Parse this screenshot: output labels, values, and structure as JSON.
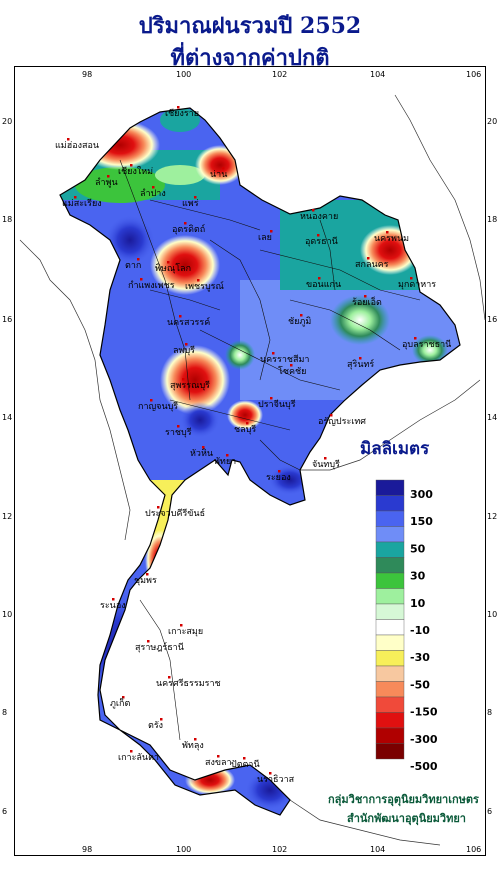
{
  "title_line1": "ปริมาณฝนรวมปี 2552",
  "title_line2": "ที่ต่างจากค่าปกติ",
  "axes": {
    "x_ticks": [
      "98",
      "100",
      "102",
      "104",
      "106"
    ],
    "y_ticks": [
      "20",
      "18",
      "16",
      "14",
      "12",
      "10",
      "8",
      "6"
    ]
  },
  "legend": {
    "title": "มิลลิเมตร",
    "colors": [
      "#1a1a9a",
      "#2a3ad0",
      "#4a64f0",
      "#6f8df7",
      "#1aa5a0",
      "#2f8a5a",
      "#3cc43c",
      "#9ef09e",
      "#d6f8d6",
      "#ffffff",
      "#ffffc8",
      "#f7ef5a",
      "#f7c8a0",
      "#f78a5a",
      "#f04a3a",
      "#e01010",
      "#b00000",
      "#7a0000"
    ],
    "labels": [
      "300",
      "150",
      "50",
      "30",
      "10",
      "-10",
      "-30",
      "-50",
      "-150",
      "-300",
      "-500"
    ]
  },
  "cities": [
    {
      "name": "เชียงราย"
    },
    {
      "name": "แม่ฮ่องสอน"
    },
    {
      "name": "เชียงใหม่"
    },
    {
      "name": "น่าน"
    },
    {
      "name": "ลำพูน"
    },
    {
      "name": "ลำปาง"
    },
    {
      "name": "แพร่"
    },
    {
      "name": "แม่สะเรียง"
    },
    {
      "name": "อุตรดิตถ์"
    },
    {
      "name": "ตาก"
    },
    {
      "name": "หนองคาย"
    },
    {
      "name": "นครพนม"
    },
    {
      "name": "อุดรธานี"
    },
    {
      "name": "เลย"
    },
    {
      "name": "สกลนคร"
    },
    {
      "name": "พิษณุโลก"
    },
    {
      "name": "มุกดาหาร"
    },
    {
      "name": "ขอนแก่น"
    },
    {
      "name": "กำแพงเพชร"
    },
    {
      "name": "เพชรบูรณ์"
    },
    {
      "name": "ร้อยเอ็ด"
    },
    {
      "name": "นครสวรรค์"
    },
    {
      "name": "ชัยภูมิ"
    },
    {
      "name": "อุบลราชธานี"
    },
    {
      "name": "ลพบุรี"
    },
    {
      "name": "สุรินทร์"
    },
    {
      "name": "นครราชสีมา"
    },
    {
      "name": "สุพรรณบุรี"
    },
    {
      "name": "โชคชัย"
    },
    {
      "name": "กาญจนบุรี"
    },
    {
      "name": "ปราจีนบุรี"
    },
    {
      "name": "อรัญประเทศ"
    },
    {
      "name": "ราชบุรี"
    },
    {
      "name": "ชลบุรี"
    },
    {
      "name": "พัทยา"
    },
    {
      "name": "จันทบุรี"
    },
    {
      "name": "หัวหิน"
    },
    {
      "name": "ระยอง"
    },
    {
      "name": "ประจวบคีรีขันธ์"
    },
    {
      "name": "ชุมพร"
    },
    {
      "name": "ระนอง"
    },
    {
      "name": "เกาะสมุย"
    },
    {
      "name": "สุราษฎร์ธานี"
    },
    {
      "name": "นครศรีธรรมราช"
    },
    {
      "name": "ภูเก็ต"
    },
    {
      "name": "ตรัง"
    },
    {
      "name": "พัทลุง"
    },
    {
      "name": "เกาะลันตา"
    },
    {
      "name": "สงขลา"
    },
    {
      "name": "ปัตตานี"
    },
    {
      "name": "นราธิวาส"
    }
  ],
  "credit_line1": "กลุ่มวิชาการอุตุนิยมวิทยาเกษตร",
  "credit_line2": "สำนักพัฒนาอุตุนิยมวิทยา"
}
